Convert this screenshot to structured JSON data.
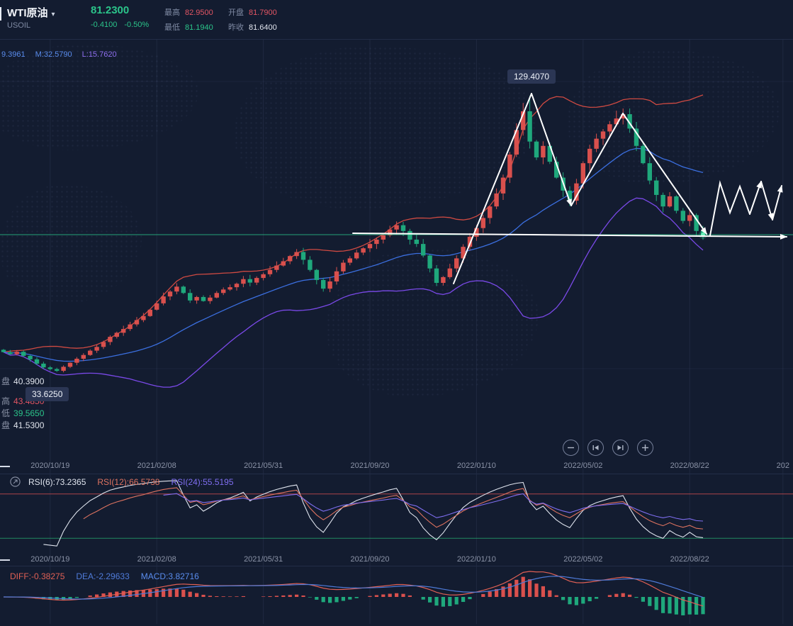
{
  "header": {
    "symbol": "WTI原油",
    "code": "USOIL",
    "price": "81.2300",
    "change": "-0.4100",
    "change_pct": "-0.50%",
    "stats": [
      {
        "label": "最高",
        "value": "82.9500",
        "color": "#e25563"
      },
      {
        "label": "最低",
        "value": "81.1940",
        "color": "#2bc48a"
      },
      {
        "label": "开盘",
        "value": "81.7900",
        "color": "#e25563"
      },
      {
        "label": "昨收",
        "value": "81.6400",
        "color": "#dfe3ec"
      }
    ]
  },
  "icons": {
    "caret_glyph": "▾"
  },
  "indicator_bar": {
    "tokens": [
      {
        "text": "9.3961",
        "color": "#5a8dee"
      },
      {
        "text": "M:32.5790",
        "color": "#5a8dee"
      },
      {
        "text": "L:15.7620",
        "color": "#8f6ff0"
      }
    ]
  },
  "annotations": {
    "peak_label": "129.4070",
    "low_label": "33.6250",
    "crosshair_rows": [
      {
        "label": "盘",
        "value": "40.3900",
        "color": "#dfe3ec"
      },
      {
        "label": "高",
        "value": "43.4850",
        "color": "#e25563"
      },
      {
        "label": "低",
        "value": "39.5650",
        "color": "#2bc48a"
      },
      {
        "label": "盘",
        "value": "41.5300",
        "color": "#dfe3ec"
      }
    ]
  },
  "rsi_panel": {
    "items": [
      {
        "text": "RSI(6):73.2365",
        "color": "#dfe4ee"
      },
      {
        "text": "RSI(12):66.5738",
        "color": "#de7360"
      },
      {
        "text": "RSI(24):55.5195",
        "color": "#7f6ef0"
      }
    ]
  },
  "macd_panel": {
    "items": [
      {
        "text": "DIFF:-0.38275",
        "color": "#e06055"
      },
      {
        "text": "DEA:-2.29633",
        "color": "#4f7bd9"
      },
      {
        "text": "MACD:3.82716",
        "color": "#5a8dee"
      }
    ]
  },
  "colors": {
    "up_red": "#d9504d",
    "down_green": "#1fa87c",
    "accent_green": "#2bc48a",
    "band_upper": "#d04a42",
    "band_mid": "#3b6fe0",
    "band_lower": "#7a49e8",
    "rsi6": "#dfe4ee",
    "rsi12": "#de7360",
    "rsi24": "#7f6ef0",
    "macd_diff": "#e06055",
    "macd_dea": "#4f7bd9",
    "grid": "rgba(140,160,210,0.10)",
    "annotation": "#ffffff"
  },
  "chart_data": {
    "type": "candlestick",
    "title": "WTI原油 (USOIL) weekly",
    "current_price": 81.23,
    "high_point": {
      "index": 79,
      "price": 129.407
    },
    "low_point": {
      "index": 8,
      "price": 33.625
    },
    "rsi_ref_lines": [
      80,
      20
    ],
    "indicators": {
      "boll_period": 20,
      "boll_k": 2,
      "rsi_periods": [
        6,
        12,
        24
      ],
      "macd": [
        12,
        26,
        9
      ]
    },
    "closes": [
      40.5,
      39.8,
      40.6,
      39.2,
      38.0,
      36.5,
      35.2,
      34.6,
      34.0,
      35.4,
      36.8,
      38.2,
      39.5,
      41.0,
      42.3,
      44.0,
      45.8,
      47.2,
      48.5,
      50.1,
      51.6,
      53.0,
      55.2,
      57.4,
      59.8,
      61.5,
      63.2,
      61.0,
      58.4,
      59.6,
      58.2,
      59.4,
      61.0,
      62.2,
      63.0,
      64.2,
      65.8,
      64.6,
      66.2,
      67.5,
      69.0,
      70.5,
      72.0,
      73.8,
      75.2,
      72.5,
      69.0,
      65.5,
      62.5,
      65.0,
      68.5,
      71.5,
      73.0,
      75.0,
      76.5,
      78.0,
      79.5,
      81.0,
      83.0,
      84.5,
      82.5,
      79.5,
      78.0,
      74.0,
      69.5,
      64.5,
      66.5,
      69.5,
      73.0,
      77.0,
      80.5,
      83.5,
      87.0,
      91.0,
      95.5,
      101.0,
      109.0,
      117.5,
      124.0,
      113.5,
      108.0,
      112.0,
      106.5,
      101.0,
      96.5,
      93.0,
      99.0,
      106.0,
      111.0,
      114.5,
      117.0,
      119.5,
      121.5,
      123.0,
      118.0,
      112.0,
      106.0,
      100.0,
      95.0,
      91.0,
      94.5,
      89.5,
      86.0,
      88.0,
      82.5,
      81.23
    ],
    "x_ticks": [
      {
        "index": 7,
        "label": "2020/10/19"
      },
      {
        "index": 23,
        "label": "2021/02/08"
      },
      {
        "index": 39,
        "label": "2021/05/31"
      },
      {
        "index": 55,
        "label": "2021/09/20"
      },
      {
        "index": 71,
        "label": "2022/01/10"
      },
      {
        "index": 87,
        "label": "2022/05/02"
      },
      {
        "index": 103,
        "label": "2022/08/22"
      },
      {
        "index": 117,
        "label": "202"
      }
    ],
    "rsi_x_ticks": [
      {
        "index": 7,
        "label": "2020/10/19"
      },
      {
        "index": 23,
        "label": "2021/02/08"
      },
      {
        "index": 39,
        "label": "2021/05/31"
      },
      {
        "index": 55,
        "label": "2021/09/20"
      },
      {
        "index": 71,
        "label": "2022/01/10"
      },
      {
        "index": 87,
        "label": "2022/05/02"
      },
      {
        "index": 103,
        "label": "2022/08/22"
      }
    ]
  }
}
